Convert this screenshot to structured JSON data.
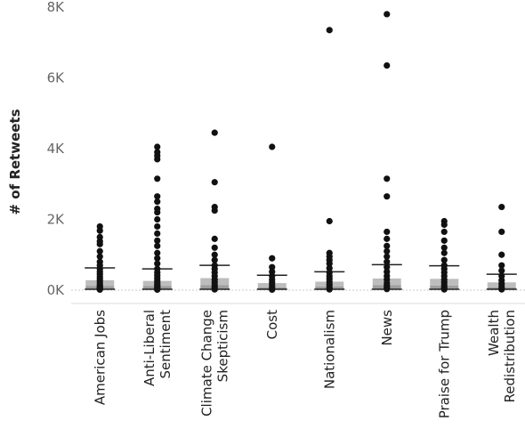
{
  "chart_data": {
    "type": "scatter",
    "title": "",
    "xlabel": "",
    "ylabel": "# of Retweets",
    "ylim": [
      0,
      8000
    ],
    "yticks": [
      0,
      2000,
      4000,
      6000,
      8000
    ],
    "ytick_labels": [
      "0K",
      "2K",
      "4K",
      "6K",
      "8K"
    ],
    "grid": false,
    "categories": [
      [
        "American Jobs"
      ],
      [
        "Anti-Liberal",
        "Sentiment"
      ],
      [
        "Climate Change",
        "Skepticism"
      ],
      [
        "Cost"
      ],
      [
        "Nationalism"
      ],
      [
        "News"
      ],
      [
        "Praise for Trump"
      ],
      [
        "Wealth",
        "Redistribution"
      ]
    ],
    "whisker_upper": [
      630,
      600,
      700,
      420,
      520,
      720,
      690,
      450
    ],
    "box_q1": [
      40,
      40,
      40,
      30,
      40,
      40,
      40,
      30
    ],
    "box_median": [
      120,
      120,
      140,
      80,
      100,
      140,
      130,
      80
    ],
    "box_q3": [
      280,
      260,
      340,
      200,
      240,
      330,
      320,
      220
    ],
    "values": [
      [
        1800,
        1680,
        1500,
        1380,
        1300,
        1100,
        950,
        800,
        700,
        600,
        520,
        450,
        380,
        320,
        260,
        200,
        150,
        110,
        80,
        50,
        30,
        15
      ],
      [
        4050,
        3900,
        3800,
        3700,
        3150,
        2650,
        2500,
        2300,
        2200,
        2000,
        1800,
        1600,
        1400,
        1250,
        1050,
        900,
        750,
        600,
        500,
        420,
        350,
        280,
        220,
        160,
        110,
        70,
        40,
        15
      ],
      [
        4450,
        3050,
        2350,
        2250,
        1450,
        1200,
        1000,
        850,
        700,
        600,
        500,
        400,
        300,
        220,
        150,
        90,
        50,
        20
      ],
      [
        4050,
        900,
        650,
        520,
        400,
        300,
        220,
        150,
        90,
        40,
        15
      ],
      [
        7350,
        1950,
        1050,
        950,
        850,
        750,
        620,
        500,
        400,
        320,
        240,
        160,
        100,
        50,
        20
      ],
      [
        7800,
        6350,
        3150,
        2650,
        1650,
        1450,
        1250,
        1100,
        950,
        800,
        650,
        520,
        400,
        300,
        200,
        130,
        70,
        30
      ],
      [
        1950,
        1850,
        1650,
        1400,
        1200,
        1050,
        850,
        700,
        600,
        500,
        400,
        300,
        220,
        150,
        90,
        50,
        20
      ],
      [
        2350,
        1650,
        1000,
        700,
        550,
        400,
        280,
        180,
        100,
        50,
        20
      ]
    ]
  }
}
